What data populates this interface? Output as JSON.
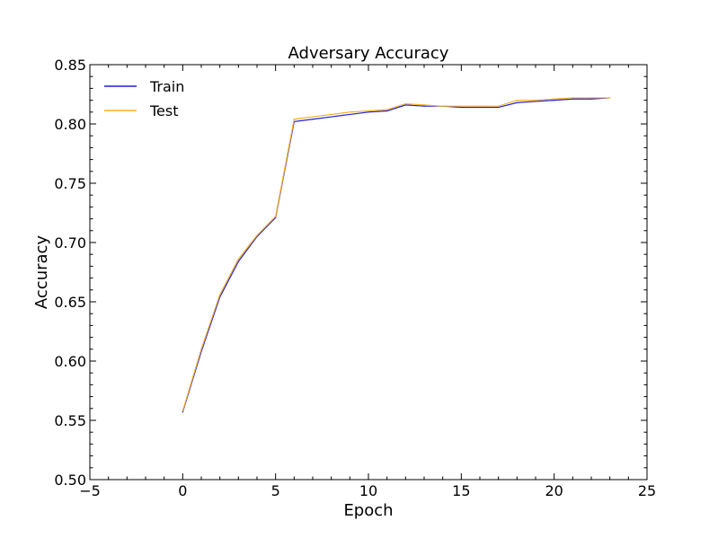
{
  "chart_data": {
    "type": "line",
    "title": "Adversary Accuracy",
    "xlabel": "Epoch",
    "ylabel": "Accuracy",
    "xlim": [
      -5,
      25
    ],
    "ylim": [
      0.5,
      0.85
    ],
    "x_ticks": [
      -5,
      0,
      5,
      10,
      15,
      20,
      25
    ],
    "y_ticks": [
      0.5,
      0.55,
      0.6,
      0.65,
      0.7,
      0.75,
      0.8,
      0.85
    ],
    "x_tick_labels": [
      "−5",
      "0",
      "5",
      "10",
      "15",
      "20",
      "25"
    ],
    "y_tick_labels": [
      "0.50",
      "0.55",
      "0.60",
      "0.65",
      "0.70",
      "0.75",
      "0.80",
      "0.85"
    ],
    "grid": false,
    "legend_position": "top-left",
    "x": [
      0,
      1,
      2,
      3,
      4,
      5,
      6,
      7,
      8,
      9,
      10,
      11,
      12,
      13,
      14,
      15,
      16,
      17,
      18,
      19,
      20,
      21,
      22,
      23
    ],
    "series": [
      {
        "name": "Train",
        "color": "#1f1fe0",
        "values": [
          0.557,
          0.608,
          0.654,
          0.684,
          0.705,
          0.721,
          0.802,
          0.804,
          0.806,
          0.808,
          0.81,
          0.811,
          0.816,
          0.815,
          0.815,
          0.814,
          0.814,
          0.814,
          0.818,
          0.819,
          0.82,
          0.821,
          0.821,
          0.822
        ]
      },
      {
        "name": "Test",
        "color": "#f5b01f",
        "values": [
          0.558,
          0.61,
          0.656,
          0.686,
          0.706,
          0.722,
          0.804,
          0.806,
          0.808,
          0.81,
          0.811,
          0.812,
          0.817,
          0.816,
          0.815,
          0.815,
          0.815,
          0.815,
          0.82,
          0.82,
          0.821,
          0.822,
          0.822,
          0.822
        ]
      }
    ]
  }
}
